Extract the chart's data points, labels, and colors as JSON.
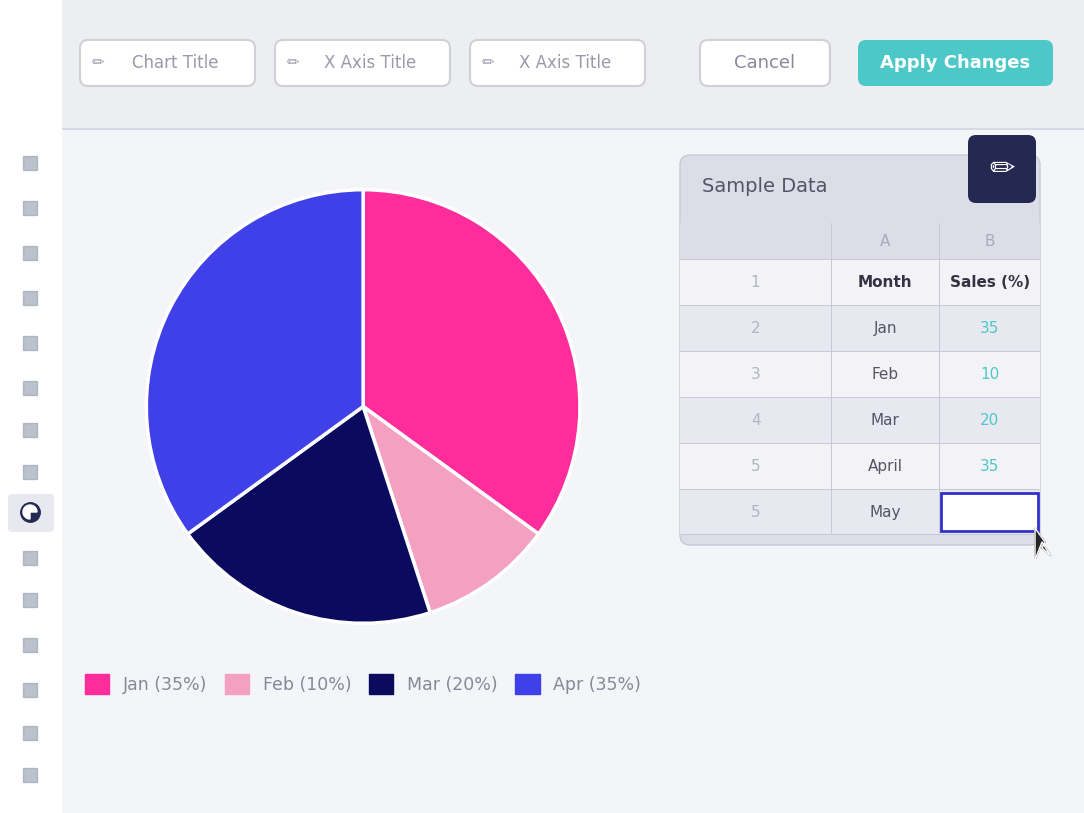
{
  "bg_color": "#eceef2",
  "sidebar_bg": "#ffffff",
  "chart_area_bg": "#f4f5f9",
  "pie_data": [
    35,
    10,
    20,
    35
  ],
  "pie_colors": [
    "#ff2d9b",
    "#f4a0c0",
    "#0a0a5e",
    "#4040e8"
  ],
  "pie_startangle": 90,
  "legend_labels": [
    "Jan (35%)",
    "Feb (10%)",
    "Mar (20%)",
    "Apr (35%)"
  ],
  "legend_colors": [
    "#ff2d9b",
    "#f4a0c0",
    "#0a0a5e",
    "#4040e8"
  ],
  "teal_color": "#4dc8c8",
  "dark_navy_btn": "#252850",
  "toolbar_bg": "#eceef2",
  "table_bg": "#dcdde6",
  "table_row_bg1": "#f2f2f7",
  "table_row_bg2": "#e8e9f0",
  "table_border_color": "#c8c9d4",
  "sidebar_icon_color": "#909aab",
  "sidebar_active_bg": "#e8e9f0",
  "btn_border_color": "#d0d0d8",
  "btn_text_color": "#999aaa",
  "cancel_text_color": "#888899",
  "row_number_color": "#b0b5c0",
  "month_text_color": "#555566",
  "value_color_teal": "#4dc8c8",
  "value_color_dark": "#666677",
  "header_text_color": "#333344"
}
